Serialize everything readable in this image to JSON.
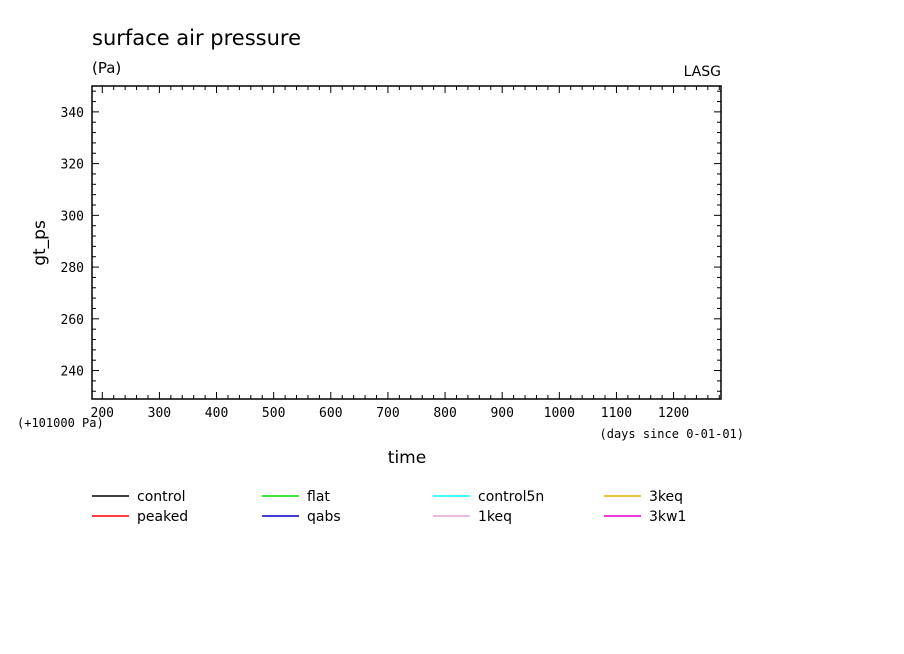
{
  "chart_data": {
    "type": "line",
    "title": "surface air pressure",
    "subtitle": "(Pa)",
    "source_label": "LASG",
    "ylabel": "gt_ps",
    "xlabel": "time",
    "x_unit_note": "(days since 0-01-01)",
    "y_offset_note": "(+101000 Pa)",
    "xlim": [
      182,
      1283
    ],
    "ylim": [
      229,
      350
    ],
    "x_ticks": [
      200,
      300,
      400,
      500,
      600,
      700,
      800,
      900,
      1000,
      1100,
      1200
    ],
    "y_ticks": [
      240,
      260,
      280,
      300,
      320,
      340
    ],
    "grid": false,
    "legend_position": "bottom",
    "series": [
      {
        "name": "control",
        "color": "#000000",
        "values": []
      },
      {
        "name": "peaked",
        "color": "#ff0000",
        "values": []
      },
      {
        "name": "flat",
        "color": "#00dd00",
        "values": []
      },
      {
        "name": "qabs",
        "color": "#0000c0",
        "values": []
      },
      {
        "name": "control5n",
        "color": "#00ffff",
        "values": []
      },
      {
        "name": "1keq",
        "color": "#e8a0d8",
        "values": []
      },
      {
        "name": "3keq",
        "color": "#e0b000",
        "values": []
      },
      {
        "name": "3kw1",
        "color": "#e000c0",
        "values": []
      }
    ]
  }
}
